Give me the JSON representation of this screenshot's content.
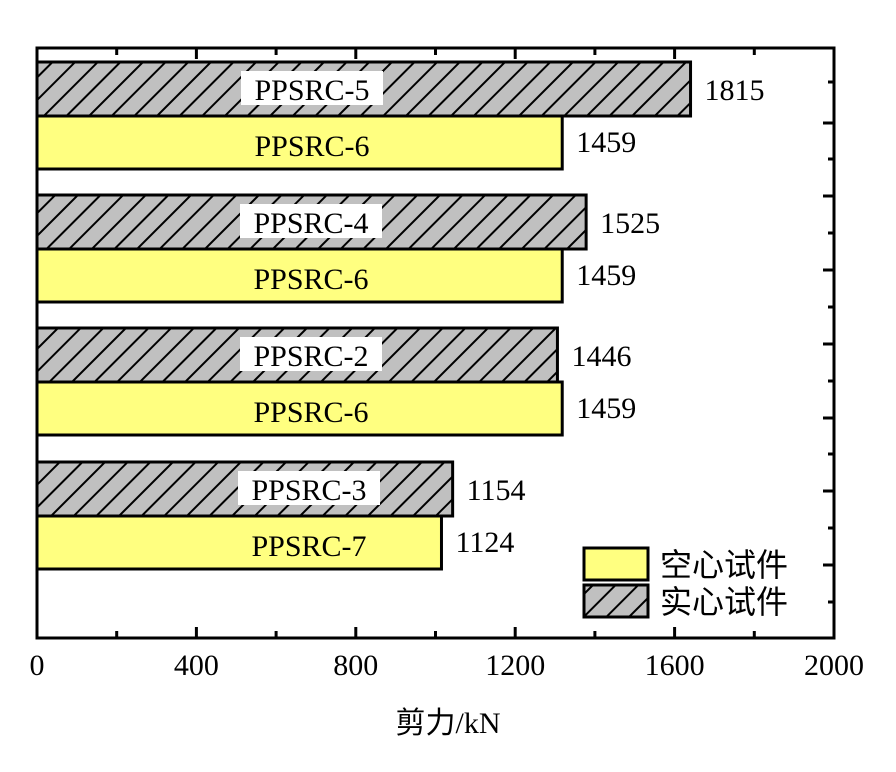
{
  "chart_data": {
    "type": "bar",
    "orientation": "horizontal",
    "title": "",
    "xlabel": "剪力/kN",
    "ylabel": "",
    "xlim": [
      0,
      2000
    ],
    "x_ticks": [
      0,
      400,
      800,
      1200,
      1600,
      2000
    ],
    "x_tick_labels": [
      "0",
      "400",
      "800",
      "1200",
      "1600",
      "2000"
    ],
    "grid": false,
    "legend_position": "lower right",
    "legend": [
      {
        "label": "空心试件",
        "style": "solid-yellow",
        "color": "#ffff80"
      },
      {
        "label": "实心试件",
        "style": "hatched-gray",
        "color": "#c0c0c0"
      }
    ],
    "groups": [
      {
        "solid": {
          "specimen": "PPSRC-5",
          "value": 1815,
          "bar_axis_reading": 1640
        },
        "hollow": {
          "specimen": "PPSRC-6",
          "value": 1459,
          "bar_axis_reading": 1318
        }
      },
      {
        "solid": {
          "specimen": "PPSRC-4",
          "value": 1525,
          "bar_axis_reading": 1378
        },
        "hollow": {
          "specimen": "PPSRC-6",
          "value": 1459,
          "bar_axis_reading": 1318
        }
      },
      {
        "solid": {
          "specimen": "PPSRC-2",
          "value": 1446,
          "bar_axis_reading": 1306
        },
        "hollow": {
          "specimen": "PPSRC-6",
          "value": 1459,
          "bar_axis_reading": 1318
        }
      },
      {
        "solid": {
          "specimen": "PPSRC-3",
          "value": 1154,
          "bar_axis_reading": 1043
        },
        "hollow": {
          "specimen": "PPSRC-7",
          "value": 1124,
          "bar_axis_reading": 1015
        }
      }
    ],
    "series": [
      {
        "name": "实心试件",
        "categories": [
          "PPSRC-5",
          "PPSRC-4",
          "PPSRC-2",
          "PPSRC-3"
        ],
        "values": [
          1815,
          1525,
          1446,
          1154
        ]
      },
      {
        "name": "空心试件",
        "categories": [
          "PPSRC-6",
          "PPSRC-6",
          "PPSRC-6",
          "PPSRC-7"
        ],
        "values": [
          1459,
          1459,
          1459,
          1124
        ]
      }
    ]
  },
  "colors": {
    "hollow_fill": "#ffff80",
    "solid_fill": "#c0c0c0",
    "stroke": "#000000"
  }
}
